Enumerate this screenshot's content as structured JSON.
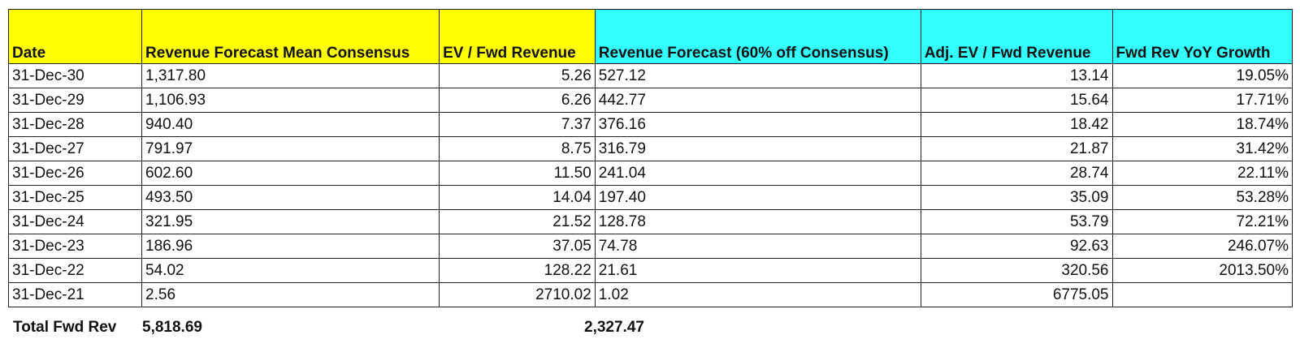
{
  "table": {
    "headers": [
      "Date",
      "Revenue Forecast Mean Consensus",
      "EV / Fwd Revenue",
      "Revenue Forecast (60% off Consensus)",
      "Adj. EV / Fwd Revenue",
      "Fwd Rev YoY Growth"
    ],
    "header_colors": {
      "yellow": "#ffff00",
      "cyan": "#33ffff"
    },
    "rows": [
      [
        "31-Dec-30",
        "1,317.80",
        "5.26",
        "527.12",
        "13.14",
        "19.05%"
      ],
      [
        "31-Dec-29",
        "1,106.93",
        "6.26",
        "442.77",
        "15.64",
        "17.71%"
      ],
      [
        "31-Dec-28",
        "940.40",
        "7.37",
        "376.16",
        "18.42",
        "18.74%"
      ],
      [
        "31-Dec-27",
        "791.97",
        "8.75",
        "316.79",
        "21.87",
        "31.42%"
      ],
      [
        "31-Dec-26",
        "602.60",
        "11.50",
        "241.04",
        "28.74",
        "22.11%"
      ],
      [
        "31-Dec-25",
        "493.50",
        "14.04",
        "197.40",
        "35.09",
        "53.28%"
      ],
      [
        "31-Dec-24",
        "321.95",
        "21.52",
        "128.78",
        "53.79",
        "72.21%"
      ],
      [
        "31-Dec-23",
        "186.96",
        "37.05",
        "74.78",
        "92.63",
        "246.07%"
      ],
      [
        "31-Dec-22",
        "54.02",
        "128.22",
        "21.61",
        "320.56",
        "2013.50%"
      ],
      [
        "31-Dec-21",
        "2.56",
        "2710.02",
        "1.02",
        "6775.05",
        ""
      ]
    ]
  },
  "totals": {
    "label": "Total Fwd Rev",
    "revenue_consensus": "5,818.69",
    "revenue_adjusted": "2,327.47"
  }
}
